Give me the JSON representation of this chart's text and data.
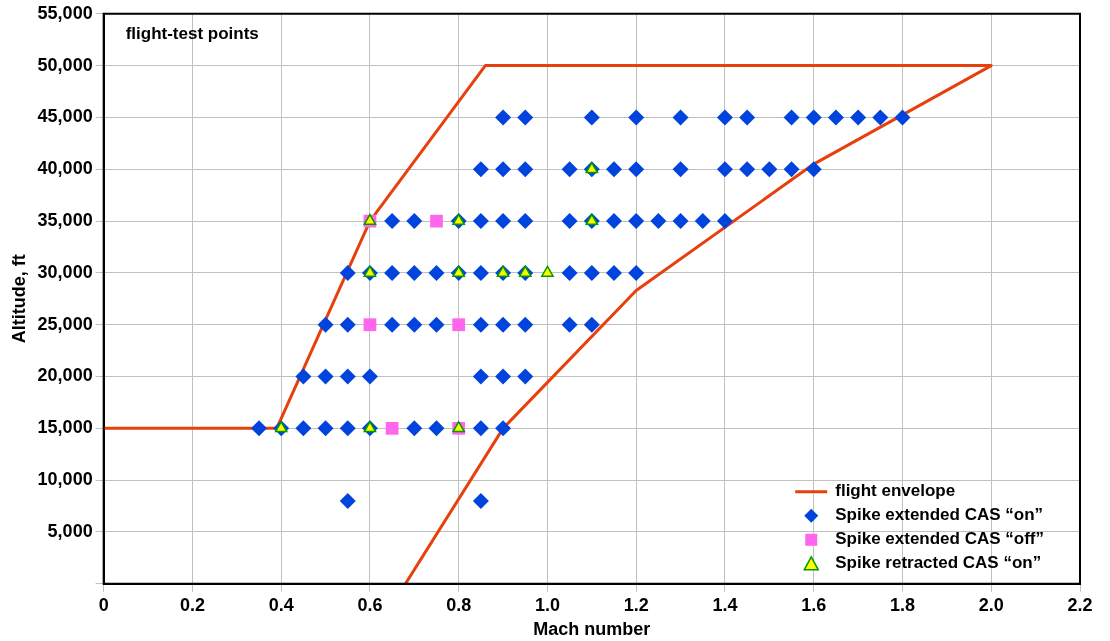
{
  "chart_data": {
    "type": "scatter",
    "title": "flight-test points",
    "xlabel": "Mach number",
    "ylabel": "Altitude, ft",
    "xlim": [
      0,
      2.2
    ],
    "xticks": [
      {
        "value": 0,
        "label": "0"
      },
      0.2,
      0.4,
      0.6,
      0.8,
      {
        "value": 1,
        "label": "1.0"
      },
      1.2,
      1.4,
      1.6,
      1.8,
      {
        "value": 2,
        "label": "2.0"
      },
      2.2
    ],
    "ylim": [
      0,
      55000
    ],
    "yticks": [
      {
        "value": 0,
        "label": null
      },
      {
        "value": 5000,
        "label": "5,000"
      },
      {
        "value": 10000,
        "label": "10,000"
      },
      {
        "value": 15000,
        "label": "15,000"
      },
      {
        "value": 20000,
        "label": "20,000"
      },
      {
        "value": 25000,
        "label": "25,000"
      },
      {
        "value": 30000,
        "label": "30,000"
      },
      {
        "value": 35000,
        "label": "35,000"
      },
      {
        "value": 40000,
        "label": "40,000"
      },
      {
        "value": 45000,
        "label": "45,000"
      },
      {
        "value": 50000,
        "label": "50,000"
      },
      {
        "value": 55000,
        "label": "55,000"
      }
    ],
    "grid": true,
    "legend": "bottom right",
    "series": [
      {
        "name": "flight envelope",
        "type": "line",
        "marker": "none",
        "color": "#e8400c",
        "x": [
          0,
          0.39,
          0.6,
          0.86,
          2.0,
          1.6,
          1.2,
          0.9,
          0.68
        ],
        "values": [
          15000,
          15000,
          35000,
          50000,
          50000,
          40500,
          28300,
          15000,
          0
        ]
      },
      {
        "name": "Spike extended CAS “on”",
        "marker": "diamond",
        "color": "#0044dd",
        "x": [
          0.9,
          0.95,
          1.1,
          1.2,
          1.3,
          1.4,
          1.45,
          1.55,
          1.6,
          1.65,
          1.7,
          1.75,
          1.8,
          0.85,
          0.9,
          0.95,
          1.05,
          1.1,
          1.15,
          1.2,
          1.3,
          1.4,
          1.45,
          1.5,
          1.55,
          1.6,
          0.65,
          0.7,
          0.8,
          0.85,
          0.9,
          0.95,
          1.05,
          1.1,
          1.15,
          1.2,
          1.25,
          1.3,
          1.35,
          1.4,
          0.55,
          0.6,
          0.65,
          0.7,
          0.75,
          0.8,
          0.85,
          0.9,
          0.95,
          1.05,
          1.1,
          1.15,
          1.2,
          0.5,
          0.55,
          0.65,
          0.7,
          0.75,
          0.85,
          0.9,
          0.95,
          1.05,
          1.1,
          0.45,
          0.5,
          0.55,
          0.6,
          0.85,
          0.9,
          0.95,
          0.35,
          0.4,
          0.45,
          0.5,
          0.55,
          0.6,
          0.7,
          0.75,
          0.85,
          0.9,
          0.55,
          0.85
        ],
        "values": [
          45000,
          45000,
          45000,
          45000,
          45000,
          45000,
          45000,
          45000,
          45000,
          45000,
          45000,
          45000,
          45000,
          40000,
          40000,
          40000,
          40000,
          40000,
          40000,
          40000,
          40000,
          40000,
          40000,
          40000,
          40000,
          40000,
          35000,
          35000,
          35000,
          35000,
          35000,
          35000,
          35000,
          35000,
          35000,
          35000,
          35000,
          35000,
          35000,
          35000,
          30000,
          30000,
          30000,
          30000,
          30000,
          30000,
          30000,
          30000,
          30000,
          30000,
          30000,
          30000,
          30000,
          25000,
          25000,
          25000,
          25000,
          25000,
          25000,
          25000,
          25000,
          25000,
          25000,
          20000,
          20000,
          20000,
          20000,
          20000,
          20000,
          20000,
          15000,
          15000,
          15000,
          15000,
          15000,
          15000,
          15000,
          15000,
          15000,
          15000,
          8000,
          8000
        ]
      },
      {
        "name": "Spike extended CAS “off”",
        "marker": "square",
        "color": "#ff66ee",
        "x": [
          0.6,
          0.75,
          0.6,
          0.8,
          0.65,
          0.8
        ],
        "values": [
          35000,
          35000,
          25000,
          25000,
          15000,
          15000
        ]
      },
      {
        "name": "Spike retracted CAS “on”",
        "marker": "triangle",
        "color": "#ffff00",
        "x": [
          0.4,
          0.6,
          0.8,
          0.6,
          0.8,
          0.9,
          0.95,
          1.0,
          0.6,
          0.8,
          1.1,
          1.1
        ],
        "values": [
          15000,
          15000,
          15000,
          30000,
          30000,
          30000,
          30000,
          30000,
          35000,
          35000,
          35000,
          40000
        ]
      }
    ]
  }
}
